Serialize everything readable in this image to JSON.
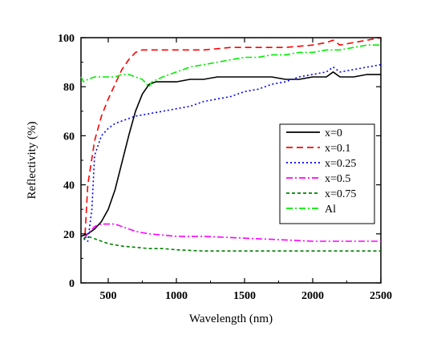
{
  "chart_data": {
    "type": "line",
    "title": "",
    "xlabel": "Wavelength (nm)",
    "ylabel": "Reflectivity (%)",
    "xlim": [
      300,
      2500
    ],
    "ylim": [
      0,
      100
    ],
    "xticks": [
      500,
      1000,
      1500,
      2000,
      2500
    ],
    "xtick_labels": [
      "500",
      "1000",
      "1500",
      "2000",
      "2500"
    ],
    "yticks": [
      0,
      20,
      40,
      60,
      80,
      100
    ],
    "ytick_labels": [
      "0",
      "20",
      "40",
      "60",
      "80",
      "100"
    ],
    "grid": false,
    "legend_position": "right",
    "series": [
      {
        "name": "x=0",
        "color": "#000000",
        "dash": "solid",
        "x": [
          300,
          350,
          400,
          450,
          500,
          550,
          600,
          650,
          700,
          750,
          800,
          850,
          900,
          1000,
          1100,
          1200,
          1300,
          1400,
          1500,
          1600,
          1700,
          1800,
          1900,
          2000,
          2100,
          2150,
          2200,
          2300,
          2400,
          2500
        ],
        "y": [
          19,
          20,
          22,
          25,
          30,
          38,
          49,
          60,
          70,
          77,
          81,
          82,
          82,
          82,
          83,
          83,
          84,
          84,
          84,
          84,
          84,
          83,
          83,
          84,
          84,
          86,
          84,
          84,
          85,
          85
        ]
      },
      {
        "name": "x=0.1",
        "color": "#ff0000",
        "dash": "dash",
        "x": [
          330,
          350,
          400,
          450,
          500,
          550,
          600,
          650,
          700,
          750,
          800,
          900,
          1000,
          1200,
          1400,
          1600,
          1800,
          2000,
          2100,
          2150,
          2200,
          2300,
          2400,
          2500
        ],
        "y": [
          20,
          40,
          58,
          68,
          75,
          81,
          87,
          91,
          94,
          95,
          95,
          95,
          95,
          95,
          96,
          96,
          96,
          97,
          98,
          99,
          97,
          98,
          99,
          100
        ]
      },
      {
        "name": "x=0.25",
        "color": "#0000ff",
        "dash": "dot",
        "x": [
          320,
          350,
          380,
          400,
          450,
          500,
          550,
          600,
          700,
          800,
          900,
          1000,
          1100,
          1200,
          1300,
          1400,
          1500,
          1600,
          1700,
          1800,
          1900,
          2000,
          2100,
          2150,
          2200,
          2300,
          2400,
          2500
        ],
        "y": [
          18,
          17,
          30,
          52,
          60,
          63,
          65,
          66,
          68,
          69,
          70,
          71,
          72,
          74,
          75,
          76,
          78,
          79,
          81,
          82,
          84,
          85,
          86,
          88,
          86,
          87,
          88,
          89
        ]
      },
      {
        "name": "x=0.5",
        "color": "#ff00ff",
        "dash": "dashdot",
        "x": [
          320,
          350,
          400,
          450,
          500,
          550,
          600,
          700,
          800,
          900,
          1000,
          1200,
          1400,
          1600,
          1800,
          2000,
          2200,
          2400,
          2500
        ],
        "y": [
          18,
          20,
          23,
          24,
          24,
          24,
          23,
          21,
          20,
          19.5,
          19,
          19,
          18.5,
          18,
          17.5,
          17,
          17,
          17,
          17
        ]
      },
      {
        "name": "x=0.75",
        "color": "#008000",
        "dash": "shortdash",
        "x": [
          320,
          350,
          400,
          450,
          500,
          600,
          700,
          800,
          900,
          1000,
          1200,
          1400,
          1600,
          1800,
          2000,
          2200,
          2400,
          2500
        ],
        "y": [
          18,
          19,
          18,
          17,
          16,
          15,
          14.5,
          14,
          14,
          13.5,
          13,
          13,
          13,
          13,
          13,
          13,
          13,
          13
        ]
      },
      {
        "name": "Al",
        "color": "#00ee00",
        "dash": "dashdot",
        "x": [
          300,
          320,
          350,
          400,
          450,
          500,
          550,
          600,
          650,
          700,
          750,
          800,
          820,
          900,
          1000,
          1100,
          1200,
          1300,
          1400,
          1500,
          1600,
          1700,
          1800,
          1900,
          2000,
          2100,
          2200,
          2300,
          2400,
          2500
        ],
        "y": [
          84,
          82,
          83,
          84,
          84,
          84,
          84,
          85,
          85,
          84,
          83,
          80,
          82,
          84,
          86,
          88,
          89,
          90,
          91,
          92,
          92,
          93,
          93,
          94,
          94,
          95,
          95,
          96,
          97,
          97
        ]
      }
    ]
  }
}
